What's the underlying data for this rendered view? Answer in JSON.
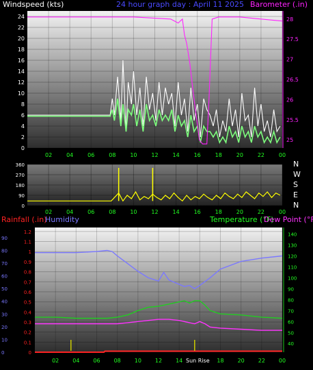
{
  "page": {
    "title": "24 hour graph day : April 11 2025",
    "title_color": "#4a4aff"
  },
  "colors": {
    "wind": "#7dff7d",
    "gust": "#ffffff",
    "baro": "#ff22ff",
    "dir": "#ffff00",
    "rain": "#ff2222",
    "humidity": "#7a78ff",
    "temp": "#22cc22",
    "dew": "#ff33ff",
    "tick_green": "#22ff22",
    "tick_white": "#ffffff"
  },
  "x_ticks": [
    "02",
    "04",
    "06",
    "08",
    "10",
    "12",
    "14",
    "16",
    "18",
    "20",
    "22",
    "00"
  ],
  "x_ticks_bottom": [
    "02",
    "04",
    "06",
    "08",
    "10",
    "12",
    "14",
    "16",
    "18",
    "20",
    "22",
    "00"
  ],
  "chart_data": [
    {
      "type": "line",
      "id": "wind-baro",
      "title": "24 hour graph day : April 11 2025",
      "ylabel": "Windspeed (kts)",
      "ylabel_right": "Barometer (.in)",
      "y_ticks": [
        0,
        2,
        4,
        6,
        8,
        10,
        12,
        14,
        16,
        18,
        20,
        22,
        24
      ],
      "ylim": [
        0,
        25
      ],
      "y2_ticks": [
        "25",
        "25.5",
        "26",
        "26.5",
        "27",
        "27.5",
        "28"
      ],
      "y2lim": [
        24.8,
        28.2
      ],
      "xlim": [
        0,
        24
      ],
      "grid": true,
      "series": [
        {
          "key": "gust",
          "x": [
            0,
            7.8,
            8.0,
            8.2,
            8.5,
            8.8,
            9.0,
            9.3,
            9.5,
            9.8,
            10.0,
            10.3,
            10.6,
            10.9,
            11.2,
            11.5,
            11.8,
            12.1,
            12.4,
            12.7,
            13.0,
            13.3,
            13.6,
            13.9,
            14.2,
            14.5,
            14.8,
            15.1,
            15.4,
            15.7,
            16.0,
            16.3,
            16.6,
            16.9,
            17.2,
            17.5,
            17.8,
            18.1,
            18.4,
            18.7,
            19.0,
            19.3,
            19.6,
            19.9,
            20.2,
            20.5,
            20.8,
            21.1,
            21.4,
            21.7,
            22.0,
            22.3,
            22.6,
            22.9,
            23.2,
            23.5,
            23.8
          ],
          "values": [
            6,
            6,
            9,
            6,
            13,
            5,
            16,
            3,
            12,
            8,
            14,
            6,
            11,
            4,
            13,
            7,
            10,
            5,
            12,
            6,
            11,
            8,
            10,
            4,
            12,
            6,
            9,
            3,
            11,
            5,
            8,
            2,
            9,
            7,
            6,
            4,
            7,
            2,
            5,
            3,
            9,
            4,
            7,
            2,
            10,
            5,
            6,
            2,
            11,
            4,
            8,
            3,
            5,
            2,
            7,
            3,
            4
          ]
        },
        {
          "key": "wind",
          "x": [
            0,
            7.8,
            8.0,
            8.2,
            8.5,
            8.8,
            9.0,
            9.3,
            9.5,
            9.8,
            10.0,
            10.3,
            10.6,
            10.9,
            11.2,
            11.5,
            11.8,
            12.1,
            12.4,
            12.7,
            13.0,
            13.3,
            13.6,
            13.9,
            14.2,
            14.5,
            14.8,
            15.1,
            15.4,
            15.7,
            16.0,
            16.3,
            16.6,
            16.9,
            17.2,
            17.5,
            17.8,
            18.1,
            18.4,
            18.7,
            19.0,
            19.3,
            19.6,
            19.9,
            20.2,
            20.5,
            20.8,
            21.1,
            21.4,
            21.7,
            22.0,
            22.3,
            22.6,
            22.9,
            23.2,
            23.5,
            23.8
          ],
          "values": [
            5.8,
            5.8,
            7,
            5,
            9,
            4,
            8,
            3,
            7,
            6,
            8,
            4,
            7,
            3,
            8,
            5,
            6,
            4,
            7,
            5,
            6,
            5,
            7,
            3,
            6,
            4,
            5,
            2,
            6,
            3,
            4,
            1,
            4,
            3,
            3,
            2,
            3,
            1,
            2,
            1,
            4,
            2,
            3,
            1,
            4,
            2,
            3,
            1,
            4,
            2,
            3,
            1,
            2,
            1,
            3,
            1,
            2
          ]
        },
        {
          "key": "baro",
          "x": [
            0,
            10,
            13.5,
            14.2,
            14.6,
            14.8,
            15.0,
            15.3,
            15.6,
            15.9,
            16.2,
            16.5,
            16.9,
            17.1,
            17.4,
            18,
            20,
            22,
            24
          ],
          "values": [
            28.05,
            28.05,
            28.0,
            27.9,
            28.0,
            27.6,
            27.4,
            26.9,
            26.2,
            25.6,
            25.0,
            24.9,
            24.9,
            26.0,
            28.0,
            28.05,
            28.05,
            28.0,
            27.95
          ]
        }
      ]
    },
    {
      "type": "scatter",
      "id": "wind-direction",
      "y_ticks": [
        0,
        90,
        180,
        270,
        360
      ],
      "ylim": [
        0,
        360
      ],
      "right_labels": [
        "N",
        "W",
        "S",
        "E",
        "N"
      ],
      "xlim": [
        0,
        24
      ],
      "series": [
        {
          "key": "dir",
          "x": [
            0,
            7.9,
            8.2,
            8.6,
            9.0,
            9.4,
            9.8,
            10.2,
            10.6,
            11.0,
            11.4,
            11.8,
            12.2,
            12.6,
            13.0,
            13.4,
            13.8,
            14.2,
            14.6,
            15.0,
            15.4,
            15.8,
            16.2,
            16.6,
            17.0,
            17.4,
            17.8,
            18.2,
            18.6,
            19.0,
            19.4,
            19.8,
            20.2,
            20.6,
            21.0,
            21.4,
            21.8,
            22.2,
            22.6,
            23.0,
            23.4,
            23.8
          ],
          "values": [
            40,
            40,
            70,
            110,
            40,
            90,
            60,
            120,
            50,
            80,
            60,
            100,
            70,
            50,
            90,
            60,
            110,
            70,
            40,
            90,
            50,
            80,
            60,
            100,
            70,
            50,
            90,
            60,
            110,
            80,
            60,
            100,
            70,
            120,
            90,
            60,
            110,
            80,
            120,
            70,
            110,
            90
          ],
          "spikes": [
            {
              "x": 8.6,
              "value": 330
            },
            {
              "x": 11.8,
              "value": 330
            }
          ]
        }
      ]
    },
    {
      "type": "line",
      "id": "rain-hum-temp",
      "ylabel_left1": "Rainfall (.in)",
      "ylabel_left2": "Humidity",
      "ylabel_right1": "Temperature (°F)",
      "ylabel_right2": "Dew Point (°F)",
      "rain_ticks": [
        "0",
        "0.1",
        "0.2",
        "0.3",
        "0.4",
        "0.5",
        "0.6",
        "0.7",
        "0.8",
        "0.9",
        "1",
        "1.1",
        "1.2"
      ],
      "hum_ticks": [
        "0",
        "10",
        "20",
        "30",
        "40",
        "50",
        "60",
        "70",
        "80",
        "90"
      ],
      "temp_ticks": [
        "40",
        "50",
        "60",
        "70",
        "80",
        "90",
        "100",
        "110",
        "120",
        "130",
        "140"
      ],
      "rainlim": [
        0,
        1.24
      ],
      "templim": [
        32,
        146
      ],
      "xlim": [
        0,
        24
      ],
      "annotation": "Sun Rise",
      "series": [
        {
          "key": "humidity",
          "x": [
            0,
            2,
            4,
            6,
            7,
            7.5,
            8,
            9,
            10,
            11,
            12,
            12.5,
            13,
            14,
            14.5,
            15,
            15.5,
            16,
            17,
            18,
            20,
            22,
            24
          ],
          "values": [
            123,
            123,
            123,
            124,
            125,
            124,
            120,
            113,
            106,
            100,
            97,
            105,
            98,
            94,
            92,
            93,
            90,
            93,
            100,
            108,
            115,
            118,
            120
          ]
        },
        {
          "key": "temp",
          "x": [
            0,
            2,
            4,
            6,
            7,
            8,
            9,
            10,
            11,
            12,
            13,
            14,
            14.5,
            15,
            15.5,
            16,
            16.5,
            17,
            18,
            20,
            22,
            24
          ],
          "values": [
            64,
            64,
            63,
            63,
            63,
            64,
            66,
            70,
            73,
            74,
            76,
            78,
            79,
            77,
            79,
            79,
            75,
            70,
            67,
            66,
            64,
            63
          ]
        },
        {
          "key": "dew",
          "x": [
            0,
            2,
            4,
            6,
            7,
            8,
            9,
            10,
            11,
            12,
            13,
            14,
            14.5,
            15,
            15.5,
            16,
            16.5,
            17,
            18,
            20,
            22,
            24
          ],
          "values": [
            58,
            58,
            58,
            58,
            58,
            58,
            59,
            60,
            61,
            62,
            62,
            61,
            60,
            59,
            58,
            60,
            58,
            55,
            54,
            53,
            52,
            52
          ]
        },
        {
          "key": "rain",
          "x": [
            0,
            6.7,
            6.8,
            24
          ],
          "values": [
            0,
            0,
            0.01,
            0.01
          ]
        }
      ],
      "markers": [
        {
          "x": 3.5
        },
        {
          "x": 15.5
        }
      ]
    }
  ]
}
